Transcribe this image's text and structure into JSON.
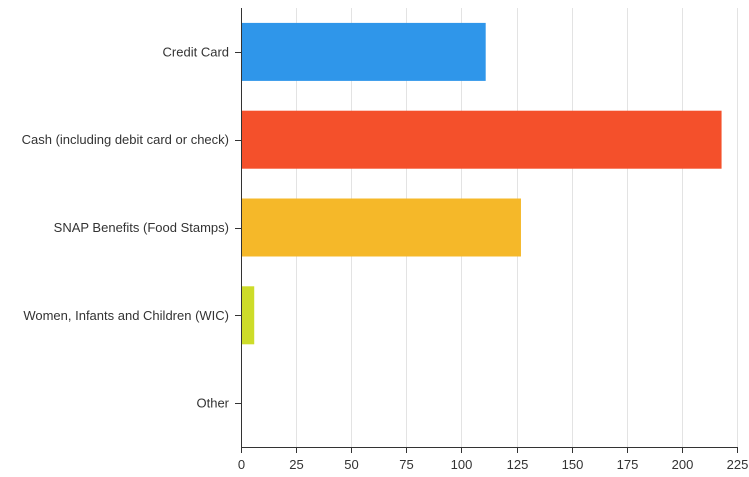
{
  "chart_data": {
    "type": "bar",
    "orientation": "horizontal",
    "categories": [
      "Credit Card",
      "Cash (including debit card or check)",
      "SNAP Benefits (Food Stamps)",
      "Women, Infants and Children (WIC)",
      "Other"
    ],
    "values": [
      111,
      218,
      127,
      6,
      0
    ],
    "colors": [
      "#2f96ea",
      "#f4502b",
      "#f5b829",
      "#cddc29",
      "#9e9e9e"
    ],
    "xlim": [
      0,
      225
    ],
    "xticks": [
      0,
      25,
      50,
      75,
      100,
      125,
      150,
      175,
      200,
      225
    ],
    "grid": true,
    "legend": "none",
    "title": "",
    "xlabel": "",
    "ylabel": ""
  }
}
